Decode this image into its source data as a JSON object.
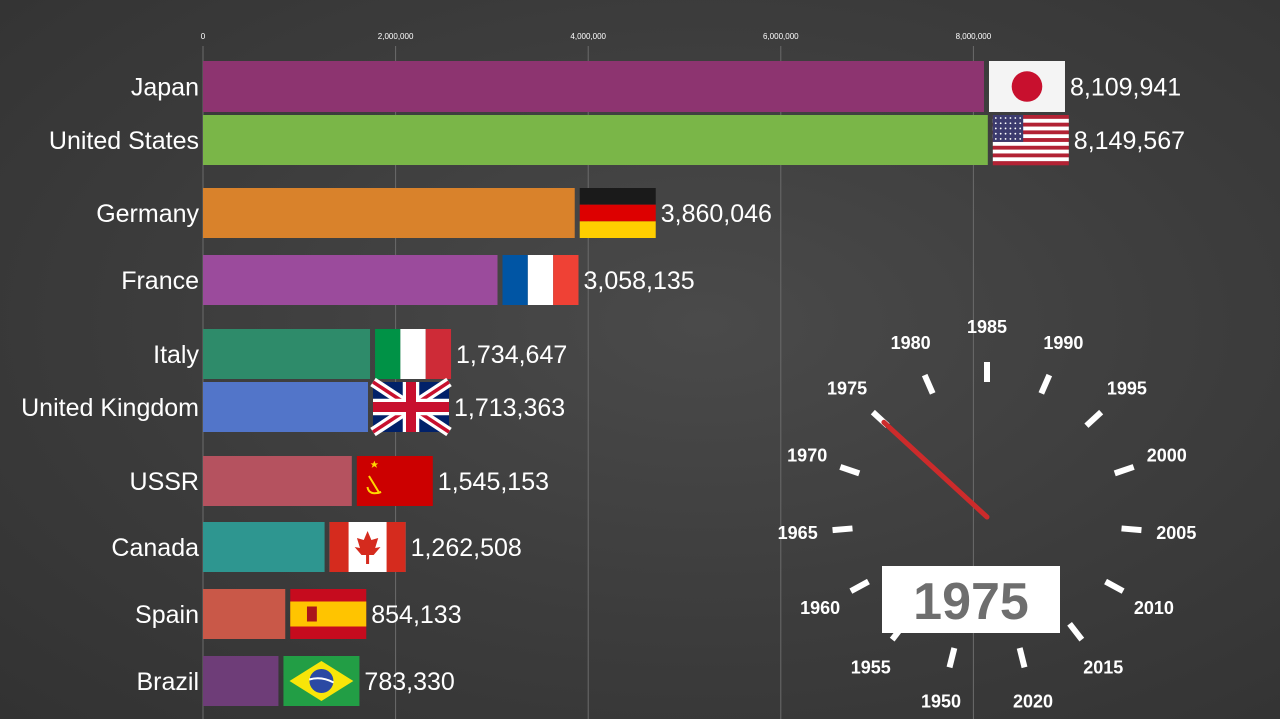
{
  "chart_data": {
    "type": "bar",
    "orientation": "horizontal",
    "title": "",
    "xlabel": "",
    "ylabel": "",
    "xlim": [
      0,
      8149567
    ],
    "ticks": [
      {
        "value": 0,
        "label": "0"
      },
      {
        "value": 2000000,
        "label": "2,000,000"
      },
      {
        "value": 4000000,
        "label": "4,000,000"
      },
      {
        "value": 6000000,
        "label": "6,000,000"
      },
      {
        "value": 8000000,
        "label": "8,000,000"
      }
    ],
    "bars": [
      {
        "country": "Japan",
        "value": 8109941,
        "display": "8,109,941",
        "color": "#8d3470",
        "flag": "flag-japan"
      },
      {
        "country": "United States",
        "value": 8149567,
        "display": "8,149,567",
        "color": "#7ab648",
        "flag": "flag-united-states"
      },
      {
        "country": "Germany",
        "value": 3860046,
        "display": "3,860,046",
        "color": "#d9822b",
        "flag": "flag-germany"
      },
      {
        "country": "France",
        "value": 3058135,
        "display": "3,058,135",
        "color": "#9b4b9c",
        "flag": "flag-france"
      },
      {
        "country": "Italy",
        "value": 1734647,
        "display": "1,734,647",
        "color": "#2e8b6a",
        "flag": "flag-italy"
      },
      {
        "country": "United Kingdom",
        "value": 1713363,
        "display": "1,713,363",
        "color": "#5275c9",
        "flag": "flag-united-kingdom"
      },
      {
        "country": "USSR",
        "value": 1545153,
        "display": "1,545,153",
        "color": "#b5525f",
        "flag": "flag-ussr"
      },
      {
        "country": "Canada",
        "value": 1262508,
        "display": "1,262,508",
        "color": "#2e9690",
        "flag": "flag-canada"
      },
      {
        "country": "Spain",
        "value": 854133,
        "display": "854,133",
        "color": "#c95848",
        "flag": "flag-spain"
      },
      {
        "country": "Brazil",
        "value": 783330,
        "display": "783,330",
        "color": "#6e3d78",
        "flag": "flag-brazil"
      }
    ],
    "dial": {
      "years": [
        "1950",
        "1955",
        "1960",
        "1965",
        "1970",
        "1975",
        "1980",
        "1985",
        "1990",
        "1995",
        "2000",
        "2005",
        "2010",
        "2015",
        "2020"
      ],
      "current_year": "1975",
      "needle_color": "#cc2b2b"
    }
  }
}
